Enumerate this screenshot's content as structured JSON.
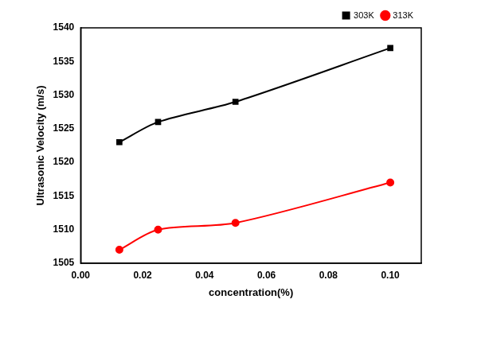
{
  "chart_data": {
    "type": "line",
    "x_label": "concentration(%)",
    "y_label": "Ultrasonic Velocity (m/s)",
    "x": [
      0.0125,
      0.025,
      0.05,
      0.1
    ],
    "series": [
      {
        "name": "303K",
        "color": "#000000",
        "marker": "square",
        "line_style": "solid",
        "values": [
          1523,
          1526,
          1529,
          1537
        ]
      },
      {
        "name": "313K",
        "color": "#ff0000",
        "marker": "circle",
        "line_style": "solid",
        "values": [
          1507,
          1510,
          1511,
          1517
        ]
      }
    ],
    "xlim": [
      0,
      0.11
    ],
    "xticks": [
      {
        "value": 0,
        "label": "0.00"
      },
      {
        "value": 0.02,
        "label": "0.02"
      },
      {
        "value": 0.04,
        "label": "0.04"
      },
      {
        "value": 0.06,
        "label": "0.06"
      },
      {
        "value": 0.08,
        "label": "0.08"
      },
      {
        "value": 0.1,
        "label": "0.10"
      }
    ],
    "ylim": [
      1505,
      1540
    ],
    "yticks": [
      1505,
      1510,
      1515,
      1520,
      1525,
      1530,
      1535,
      1540
    ],
    "grid": false,
    "legend": "top-right"
  }
}
